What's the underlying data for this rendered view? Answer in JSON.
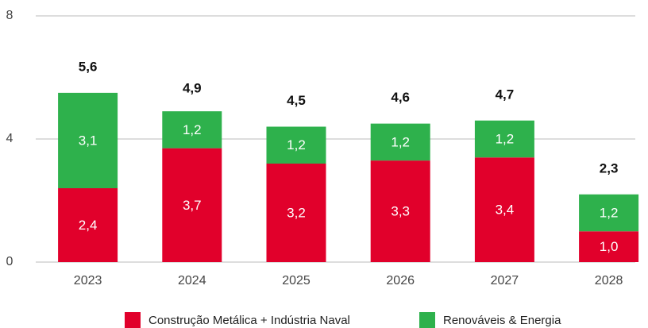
{
  "chart_data": {
    "type": "stacked_bar",
    "categories": [
      "2023",
      "2024",
      "2025",
      "2026",
      "2027",
      "2028"
    ],
    "series": [
      {
        "name": "Construção Metálica + Indústria Naval",
        "color": "#e1002b",
        "values": [
          2.4,
          3.7,
          3.2,
          3.3,
          3.4,
          1.0
        ],
        "value_labels": [
          "2,4",
          "3,7",
          "3,2",
          "3,3",
          "3,4",
          "1,0"
        ]
      },
      {
        "name": "Renováveis & Energia",
        "color": "#2eb14c",
        "values": [
          3.1,
          1.2,
          1.2,
          1.2,
          1.2,
          1.2
        ],
        "value_labels": [
          "3,1",
          "1,2",
          "1,2",
          "1,2",
          "1,2",
          "1,2"
        ]
      }
    ],
    "totals": [
      5.6,
      4.9,
      4.5,
      4.6,
      4.7,
      2.3
    ],
    "total_labels": [
      "5,6",
      "4,9",
      "4,5",
      "4,6",
      "4,7",
      "2,3"
    ],
    "ylim": [
      0,
      8
    ],
    "yticks": [
      0,
      4,
      8
    ],
    "grid": true
  }
}
